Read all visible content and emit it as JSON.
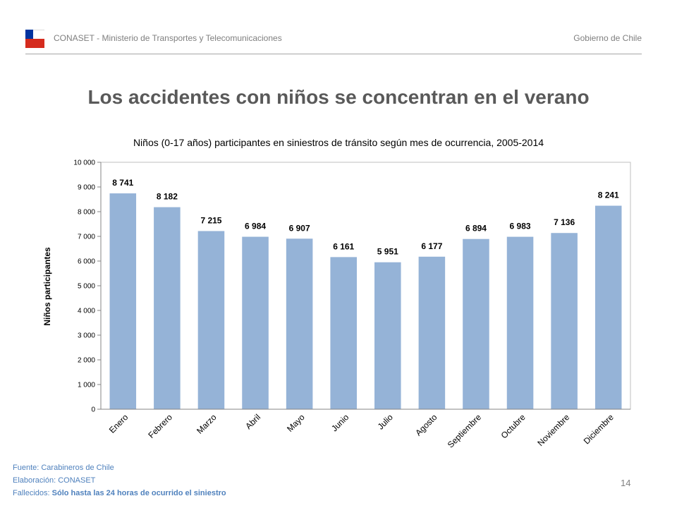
{
  "header": {
    "org": "CONASET - Ministerio de Transportes y Telecomunicaciones",
    "right": "Gobierno de Chile"
  },
  "title": "Los accidentes con niños se concentran en el verano",
  "footer": {
    "source": "Fuente: Carabineros de Chile",
    "elaboration": "Elaboración: CONASET",
    "deaths_label": "Fallecidos:",
    "deaths_text": "Sólo hasta las 24 horas de ocurrido el siniestro"
  },
  "page_number": "14",
  "colors": {
    "bar": "#95b3d7",
    "title": "#595959",
    "footer": "#4f81bd"
  },
  "chart_data": {
    "type": "bar",
    "title": "Niños (0-17 años) participantes en siniestros de tránsito según mes de ocurrencia, 2005-2014",
    "xlabel": "",
    "ylabel": "Niños participantes",
    "categories": [
      "Enero",
      "Febrero",
      "Marzo",
      "Abril",
      "Mayo",
      "Junio",
      "Julio",
      "Agosto",
      "Septiembre",
      "Octubre",
      "Noviembre",
      "Diciembre"
    ],
    "values": [
      8741,
      8182,
      7215,
      6984,
      6907,
      6161,
      5951,
      6177,
      6894,
      6983,
      7136,
      8241
    ],
    "value_labels": [
      "8 741",
      "8 182",
      "7 215",
      "6 984",
      "6 907",
      "6 161",
      "5 951",
      "6 177",
      "6 894",
      "6 983",
      "7 136",
      "8 241"
    ],
    "yticks": [
      "0",
      "1 000",
      "2 000",
      "3 000",
      "4 000",
      "5 000",
      "6 000",
      "7 000",
      "8 000",
      "9 000",
      "10 000"
    ],
    "ylim": [
      0,
      10000
    ],
    "grid": false,
    "legend": "none"
  }
}
